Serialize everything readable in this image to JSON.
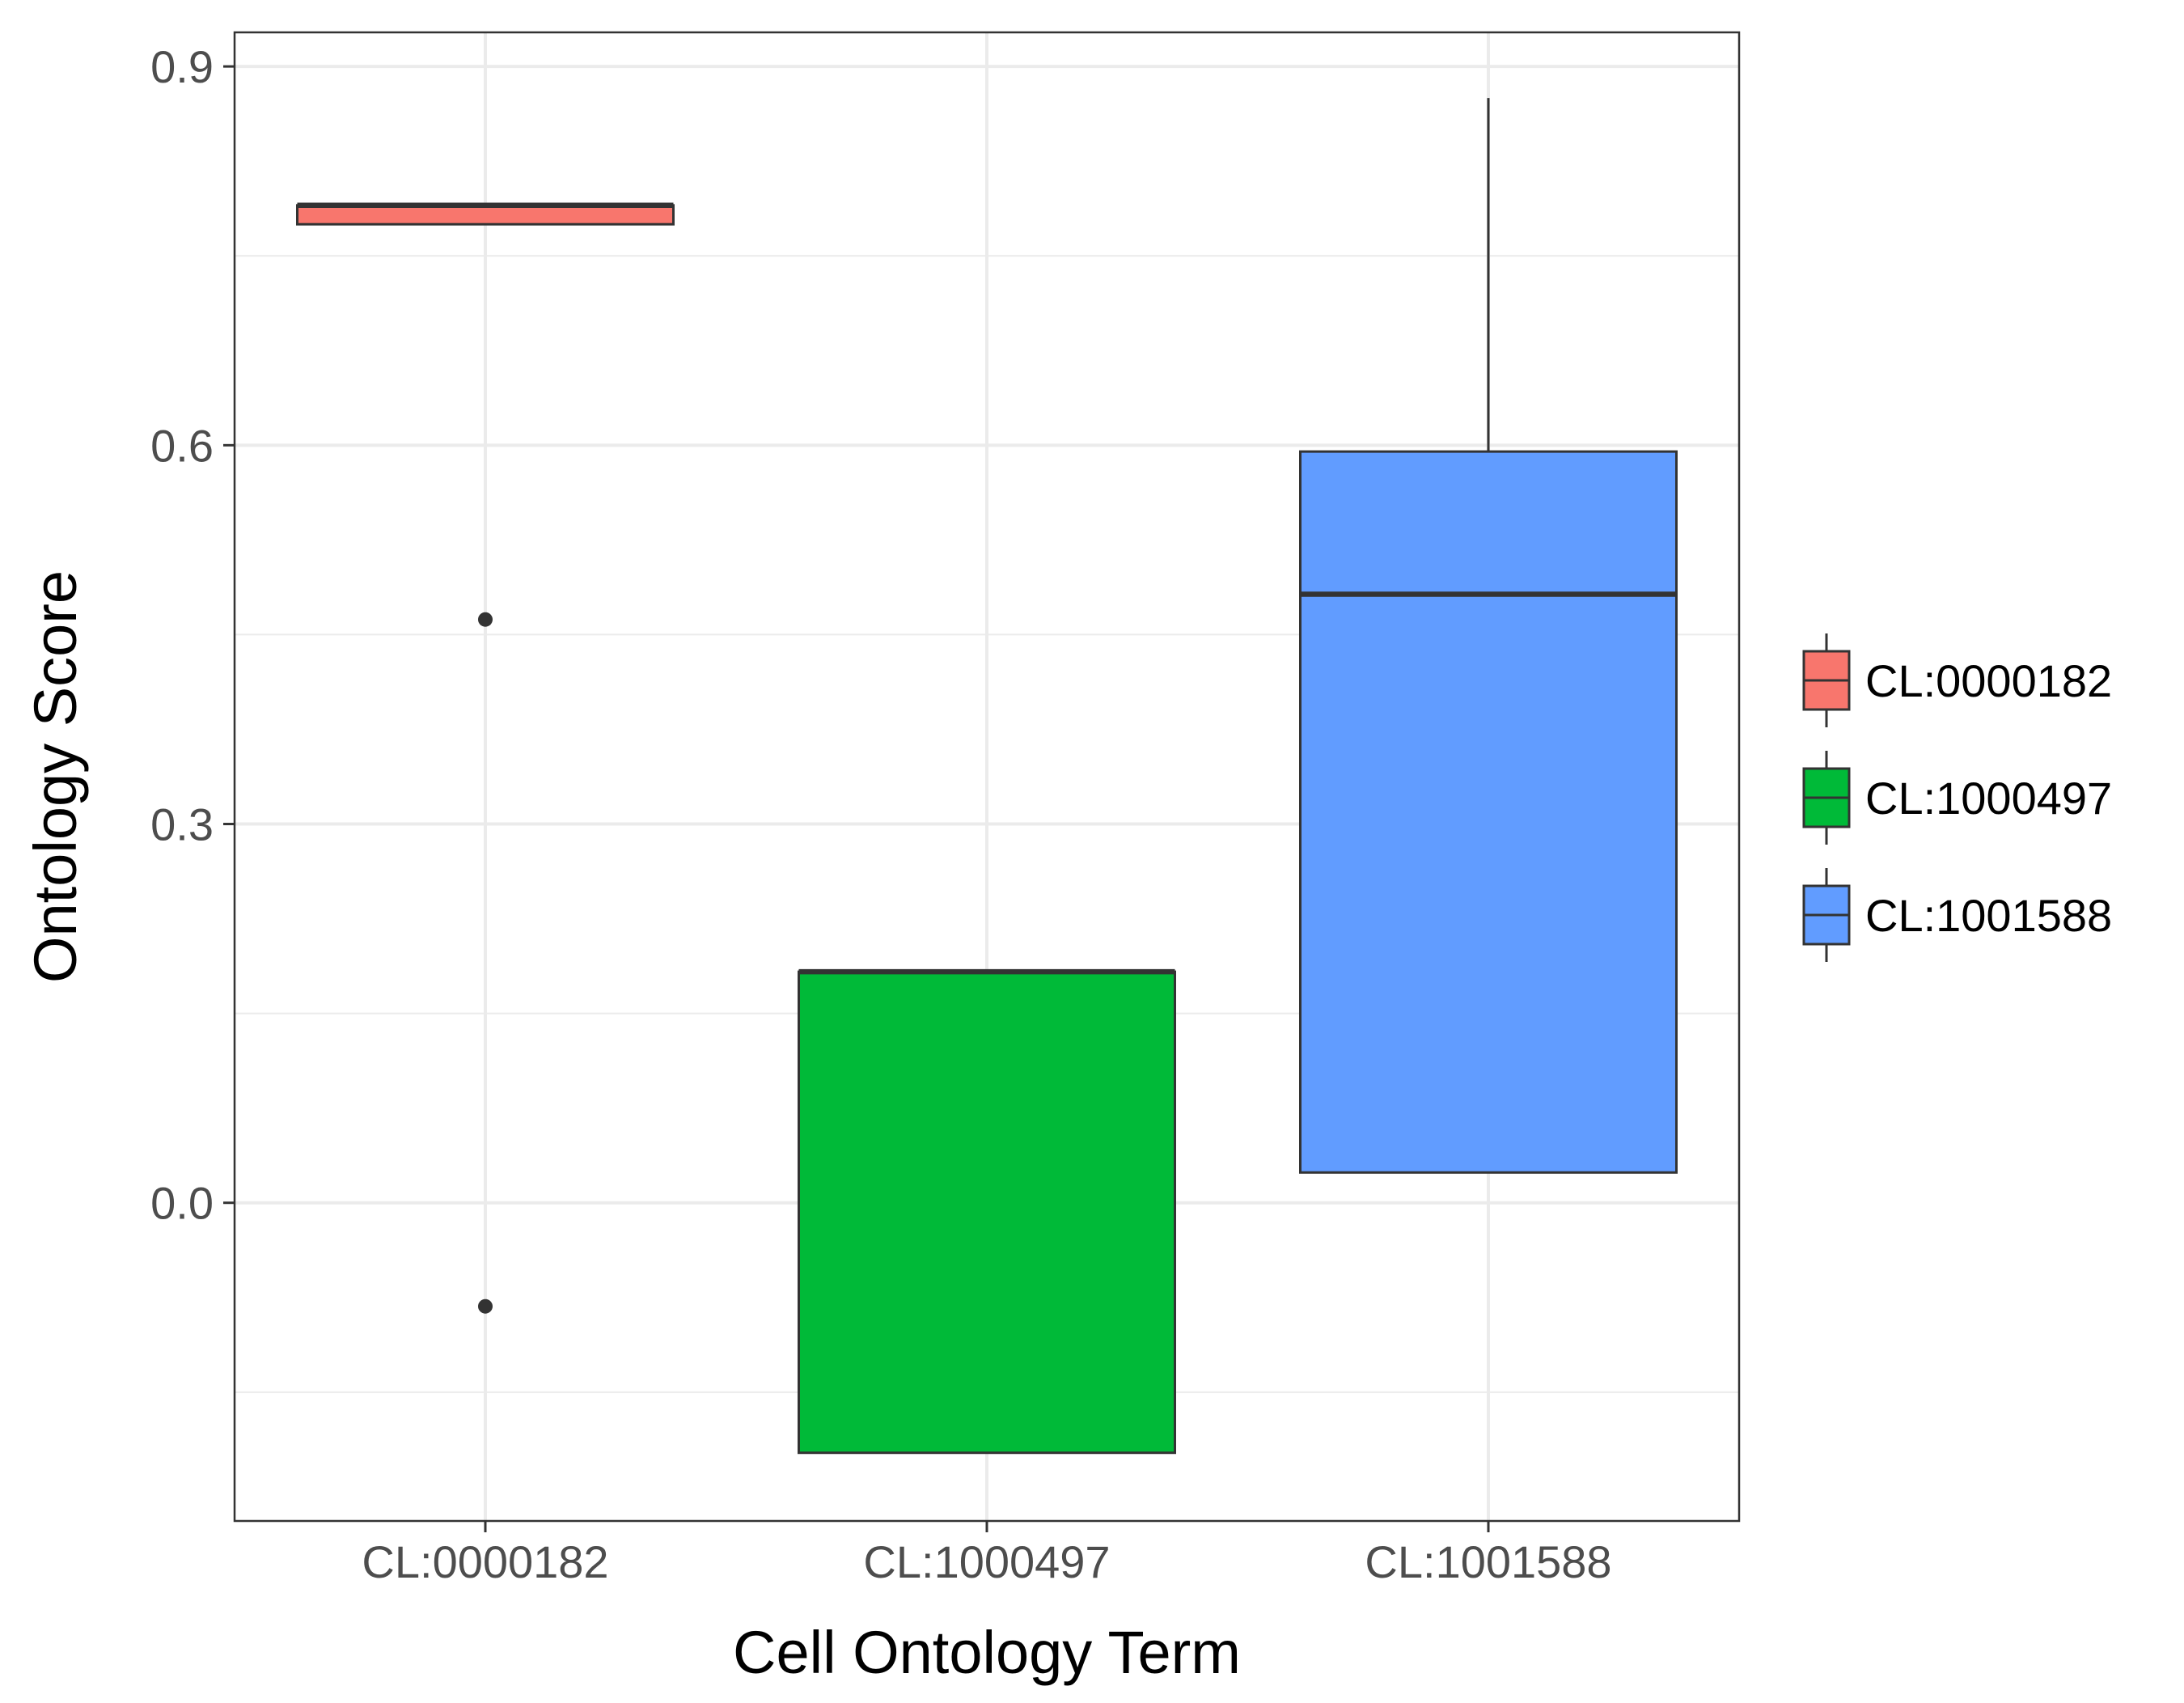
{
  "chart_data": {
    "type": "boxplot",
    "title": "",
    "xlabel": "Cell Ontology Term",
    "ylabel": "Ontology Score",
    "ylim": [
      -0.252,
      0.927
    ],
    "yticks": [
      0.0,
      0.3,
      0.6,
      0.9
    ],
    "ytick_labels": [
      "0.0",
      "0.3",
      "0.6",
      "0.9"
    ],
    "grid": true,
    "legend_position": "right",
    "categories": [
      "CL:0000182",
      "CL:1000497",
      "CL:1001588"
    ],
    "series": [
      {
        "name": "CL:0000182",
        "color": "#F8766D",
        "whisker_low": 0.775,
        "q1": 0.775,
        "median": 0.79,
        "q3": 0.79,
        "whisker_high": 0.79,
        "outliers": [
          0.462,
          -0.082
        ]
      },
      {
        "name": "CL:1000497",
        "color": "#00BA38",
        "whisker_low": -0.198,
        "q1": -0.198,
        "median": 0.183,
        "q3": 0.183,
        "whisker_high": 0.183,
        "outliers": []
      },
      {
        "name": "CL:1001588",
        "color": "#619CFF",
        "whisker_low": 0.024,
        "q1": 0.024,
        "median": 0.482,
        "q3": 0.595,
        "whisker_high": 0.875,
        "outliers": []
      }
    ]
  }
}
